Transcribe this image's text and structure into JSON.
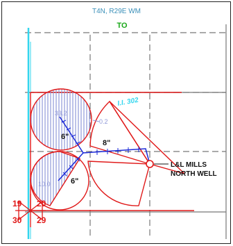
{
  "header": {
    "township_range": "T4N, R29E WM",
    "to_label": "TO"
  },
  "well": {
    "name_line1": "L&L MILLS",
    "name_line2": "NORTH WELL"
  },
  "pipes": {
    "upper_branch_size": "6\"",
    "main_line_size": "8\"",
    "lower_branch_size": "6\""
  },
  "hatched_areas": {
    "upper_area_value": "33.2",
    "lower_area_value": "10.0",
    "small_label": "0.2"
  },
  "canal_label": "I.I. 302",
  "section_corner": {
    "top_left": "19",
    "top_right": "20",
    "bottom_left": "30",
    "bottom_right": "29"
  },
  "colors": {
    "boundary_red": "#e01818",
    "pipe_blue": "#1a28d8",
    "hatch_blue": "#8f98d8",
    "canal_cyan": "#33d6ee",
    "header_green": "#1aa81a",
    "header_teal": "#3a8fb8",
    "gray_lines": "#777777"
  }
}
